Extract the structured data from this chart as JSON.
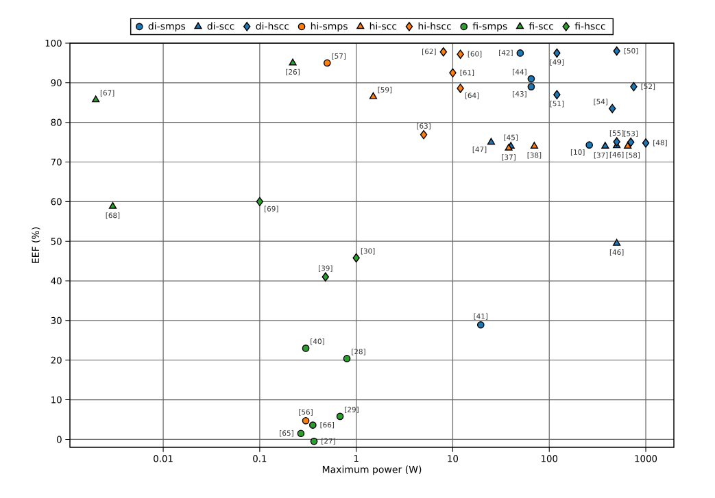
{
  "chart_data": {
    "type": "scatter",
    "xlabel": "Maximum power (W)",
    "ylabel": "EEF (%)",
    "log": "x",
    "grid": true,
    "legend": "top",
    "xlim": [
      0.00108,
      1955
    ],
    "ylim": [
      -2,
      100
    ],
    "xticks": [
      0.01,
      0.1,
      1,
      10,
      100,
      1000
    ],
    "yticks": [
      0,
      10,
      20,
      30,
      40,
      50,
      60,
      70,
      80,
      90,
      100
    ],
    "series": [
      {
        "name": "di-smps",
        "color": "#1f77b4",
        "marker": "circle",
        "x": [
          50,
          65,
          65,
          260,
          19.5
        ],
        "values": [
          97.5,
          91,
          89,
          74.3,
          28.9
        ]
      },
      {
        "name": "di-scc",
        "color": "#1f77b4",
        "marker": "triangle",
        "x": [
          25,
          40,
          380,
          500,
          500
        ],
        "values": [
          75,
          74,
          74,
          74.1,
          49.5
        ]
      },
      {
        "name": "di-hscc",
        "color": "#1f77b4",
        "marker": "diamond",
        "x": [
          120,
          500,
          750,
          120,
          450,
          500,
          700,
          1000
        ],
        "values": [
          97.5,
          98,
          89,
          87,
          83.5,
          75.1,
          75,
          74.8
        ]
      },
      {
        "name": "hi-smps",
        "color": "#ff7f0e",
        "marker": "circle",
        "x": [
          0.5,
          0.3
        ],
        "values": [
          95,
          4.7
        ]
      },
      {
        "name": "hi-scc",
        "color": "#ff7f0e",
        "marker": "triangle",
        "x": [
          1.5,
          38,
          70,
          650
        ],
        "values": [
          86.5,
          73.5,
          74,
          74
        ]
      },
      {
        "name": "hi-hscc",
        "color": "#ff7f0e",
        "marker": "diamond",
        "x": [
          8,
          12,
          10,
          12,
          5
        ],
        "values": [
          97.8,
          97.2,
          92.5,
          88.6,
          76.9
        ]
      },
      {
        "name": "fi-smps",
        "color": "#2ca02c",
        "marker": "circle",
        "x": [
          0.3,
          0.8,
          0.68,
          0.355,
          0.267,
          0.365
        ],
        "values": [
          23,
          20.4,
          5.8,
          3.6,
          1.5,
          -0.5
        ]
      },
      {
        "name": "fi-scc",
        "color": "#2ca02c",
        "marker": "triangle",
        "x": [
          0.002,
          0.22,
          0.003
        ],
        "values": [
          85.7,
          95,
          58.8
        ]
      },
      {
        "name": "fi-hscc",
        "color": "#2ca02c",
        "marker": "diamond",
        "x": [
          0.1,
          1,
          0.48
        ],
        "values": [
          60,
          45.8,
          41
        ]
      }
    ],
    "annotations": [
      {
        "text": "[42]",
        "x": 50,
        "y": 97.5
      },
      {
        "text": "[44]",
        "x": 65,
        "y": 91
      },
      {
        "text": "[43]",
        "x": 65,
        "y": 89
      },
      {
        "text": "[10]",
        "x": 260,
        "y": 74.3
      },
      {
        "text": "[41]",
        "x": 19.5,
        "y": 28.9
      },
      {
        "text": "[47]",
        "x": 25,
        "y": 75
      },
      {
        "text": "[45]",
        "x": 40,
        "y": 74
      },
      {
        "text": "[37]",
        "x": 380,
        "y": 74
      },
      {
        "text": "[46]",
        "x": 500,
        "y": 74.1
      },
      {
        "text": "[46]",
        "x": 500,
        "y": 49.5
      },
      {
        "text": "[49]",
        "x": 120,
        "y": 97.5
      },
      {
        "text": "[50]",
        "x": 500,
        "y": 98
      },
      {
        "text": "[52]",
        "x": 750,
        "y": 89
      },
      {
        "text": "[51]",
        "x": 120,
        "y": 87
      },
      {
        "text": "[54]",
        "x": 450,
        "y": 83.5
      },
      {
        "text": "[55]",
        "x": 500,
        "y": 75.1
      },
      {
        "text": "[53]",
        "x": 700,
        "y": 75
      },
      {
        "text": "[48]",
        "x": 1000,
        "y": 74.8
      },
      {
        "text": "[57]",
        "x": 0.5,
        "y": 95
      },
      {
        "text": "[56]",
        "x": 0.3,
        "y": 4.7
      },
      {
        "text": "[59]",
        "x": 1.5,
        "y": 86.5
      },
      {
        "text": "[37]",
        "x": 38,
        "y": 73.5
      },
      {
        "text": "[38]",
        "x": 70,
        "y": 74
      },
      {
        "text": "[58]",
        "x": 650,
        "y": 74
      },
      {
        "text": "[62]",
        "x": 8,
        "y": 97.8
      },
      {
        "text": "[60]",
        "x": 12,
        "y": 97.2
      },
      {
        "text": "[61]",
        "x": 10,
        "y": 92.5
      },
      {
        "text": "[64]",
        "x": 12,
        "y": 88.6
      },
      {
        "text": "[63]",
        "x": 5,
        "y": 76.9
      },
      {
        "text": "[40]",
        "x": 0.3,
        "y": 23
      },
      {
        "text": "[28]",
        "x": 0.8,
        "y": 20.4
      },
      {
        "text": "[29]",
        "x": 0.68,
        "y": 5.8
      },
      {
        "text": "[66]",
        "x": 0.355,
        "y": 3.6
      },
      {
        "text": "[65]",
        "x": 0.267,
        "y": 1.5
      },
      {
        "text": "[27]",
        "x": 0.365,
        "y": -0.5
      },
      {
        "text": "[67]",
        "x": 0.002,
        "y": 85.7
      },
      {
        "text": "[26]",
        "x": 0.22,
        "y": 95
      },
      {
        "text": "[68]",
        "x": 0.003,
        "y": 58.8
      },
      {
        "text": "[69]",
        "x": 0.1,
        "y": 60
      },
      {
        "text": "[30]",
        "x": 1,
        "y": 45.8
      },
      {
        "text": "[39]",
        "x": 0.48,
        "y": 41
      }
    ]
  }
}
